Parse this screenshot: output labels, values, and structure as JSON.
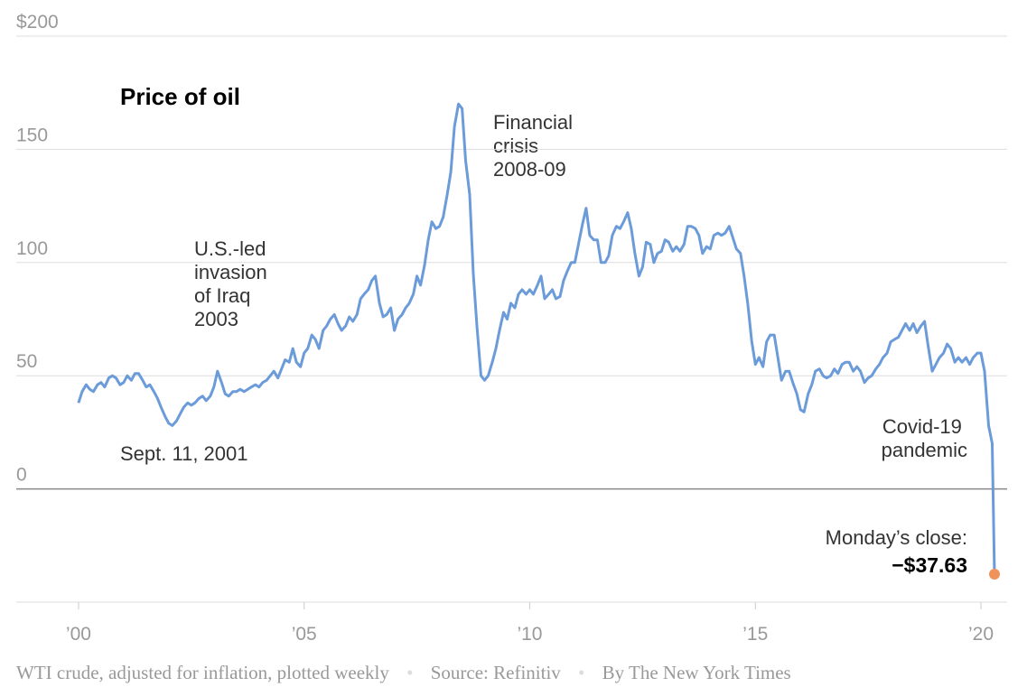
{
  "chart_data": {
    "type": "line",
    "title": "Price of oil",
    "color": "#6b9bd9",
    "x": [
      2000,
      2000.08,
      2000.17,
      2000.25,
      2000.33,
      2000.42,
      2000.5,
      2000.58,
      2000.67,
      2000.75,
      2000.83,
      2000.92,
      2001,
      2001.08,
      2001.17,
      2001.25,
      2001.33,
      2001.42,
      2001.5,
      2001.58,
      2001.67,
      2001.75,
      2001.83,
      2001.92,
      2002,
      2002.08,
      2002.17,
      2002.25,
      2002.33,
      2002.42,
      2002.5,
      2002.58,
      2002.67,
      2002.75,
      2002.83,
      2002.92,
      2003,
      2003.08,
      2003.17,
      2003.25,
      2003.33,
      2003.42,
      2003.5,
      2003.58,
      2003.67,
      2003.75,
      2003.83,
      2003.92,
      2004,
      2004.08,
      2004.17,
      2004.25,
      2004.33,
      2004.42,
      2004.5,
      2004.58,
      2004.67,
      2004.75,
      2004.83,
      2004.92,
      2005,
      2005.08,
      2005.17,
      2005.25,
      2005.33,
      2005.42,
      2005.5,
      2005.58,
      2005.67,
      2005.75,
      2005.83,
      2005.92,
      2006,
      2006.08,
      2006.17,
      2006.25,
      2006.33,
      2006.42,
      2006.5,
      2006.58,
      2006.67,
      2006.75,
      2006.83,
      2006.92,
      2007,
      2007.08,
      2007.17,
      2007.25,
      2007.33,
      2007.42,
      2007.5,
      2007.58,
      2007.67,
      2007.75,
      2007.83,
      2007.92,
      2008,
      2008.08,
      2008.17,
      2008.25,
      2008.33,
      2008.42,
      2008.5,
      2008.58,
      2008.67,
      2008.75,
      2008.83,
      2008.92,
      2009,
      2009.08,
      2009.17,
      2009.25,
      2009.33,
      2009.42,
      2009.5,
      2009.58,
      2009.67,
      2009.75,
      2009.83,
      2009.92,
      2010,
      2010.08,
      2010.17,
      2010.25,
      2010.33,
      2010.42,
      2010.5,
      2010.58,
      2010.67,
      2010.75,
      2010.83,
      2010.92,
      2011,
      2011.08,
      2011.17,
      2011.25,
      2011.33,
      2011.42,
      2011.5,
      2011.58,
      2011.67,
      2011.75,
      2011.83,
      2011.92,
      2012,
      2012.08,
      2012.17,
      2012.25,
      2012.33,
      2012.42,
      2012.5,
      2012.58,
      2012.67,
      2012.75,
      2012.83,
      2012.92,
      2013,
      2013.08,
      2013.17,
      2013.25,
      2013.33,
      2013.42,
      2013.5,
      2013.58,
      2013.67,
      2013.75,
      2013.83,
      2013.92,
      2014,
      2014.08,
      2014.17,
      2014.25,
      2014.33,
      2014.42,
      2014.5,
      2014.58,
      2014.67,
      2014.75,
      2014.83,
      2014.92,
      2015,
      2015.08,
      2015.17,
      2015.25,
      2015.33,
      2015.42,
      2015.5,
      2015.58,
      2015.67,
      2015.75,
      2015.83,
      2015.92,
      2016,
      2016.08,
      2016.17,
      2016.25,
      2016.33,
      2016.42,
      2016.5,
      2016.58,
      2016.67,
      2016.75,
      2016.83,
      2016.92,
      2017,
      2017.08,
      2017.17,
      2017.25,
      2017.33,
      2017.42,
      2017.5,
      2017.58,
      2017.67,
      2017.75,
      2017.83,
      2017.92,
      2018,
      2018.08,
      2018.17,
      2018.25,
      2018.33,
      2018.42,
      2018.5,
      2018.58,
      2018.67,
      2018.75,
      2018.83,
      2018.92,
      2019,
      2019.08,
      2019.17,
      2019.25,
      2019.33,
      2019.42,
      2019.5,
      2019.58,
      2019.67,
      2019.75,
      2019.83,
      2019.92,
      2020,
      2020.08,
      2020.17,
      2020.25,
      2020.3
    ],
    "values": [
      38,
      43,
      46,
      44,
      43,
      46,
      47,
      45,
      49,
      50,
      49,
      46,
      47,
      50,
      48,
      51,
      51,
      48,
      45,
      46,
      43,
      40,
      36,
      32,
      29,
      28,
      30,
      33,
      36,
      38,
      37,
      38,
      40,
      41,
      39,
      41,
      45,
      52,
      47,
      42,
      41,
      43,
      43,
      44,
      43,
      44,
      45,
      46,
      45,
      47,
      48,
      50,
      52,
      49,
      53,
      57,
      56,
      62,
      56,
      54,
      60,
      62,
      68,
      66,
      62,
      70,
      72,
      75,
      77,
      73,
      70,
      72,
      76,
      74,
      77,
      84,
      86,
      88,
      92,
      94,
      82,
      76,
      77,
      80,
      70,
      75,
      77,
      80,
      82,
      86,
      94,
      90,
      99,
      110,
      118,
      115,
      116,
      120,
      130,
      140,
      160,
      170,
      168,
      145,
      130,
      95,
      72,
      50,
      48,
      50,
      56,
      62,
      70,
      78,
      75,
      82,
      80,
      86,
      88,
      86,
      88,
      86,
      90,
      94,
      84,
      86,
      88,
      84,
      85,
      92,
      96,
      100,
      100,
      108,
      117,
      124,
      112,
      110,
      110,
      100,
      100,
      103,
      112,
      116,
      115,
      118,
      122,
      115,
      104,
      94,
      98,
      109,
      108,
      100,
      104,
      105,
      110,
      109,
      105,
      107,
      105,
      108,
      116,
      116,
      115,
      112,
      104,
      107,
      106,
      112,
      113,
      112,
      113,
      116,
      111,
      106,
      104,
      94,
      82,
      65,
      55,
      58,
      54,
      65,
      68,
      68,
      58,
      48,
      52,
      52,
      47,
      42,
      35,
      34,
      42,
      46,
      52,
      53,
      50,
      49,
      50,
      53,
      51,
      55,
      56,
      56,
      52,
      54,
      52,
      47,
      49,
      50,
      53,
      55,
      58,
      60,
      65,
      66,
      67,
      70,
      73,
      70,
      73,
      69,
      72,
      74,
      63,
      52,
      55,
      58,
      60,
      64,
      62,
      56,
      58,
      56,
      58,
      55,
      58,
      60,
      60,
      52,
      28,
      20,
      -37.63
    ],
    "highlight": {
      "x": 2020.3,
      "value": -37.63,
      "label": "−$37.63",
      "caption": "Monday’s close:",
      "color": "#f0935a"
    },
    "xlim": [
      1998.62,
      2020.58
    ],
    "xticks": [
      {
        "value": 2000,
        "label": "’00"
      },
      {
        "value": 2005,
        "label": "’05"
      },
      {
        "value": 2010,
        "label": "’10"
      },
      {
        "value": 2015,
        "label": "’15"
      },
      {
        "value": 2020,
        "label": "’20"
      }
    ],
    "ylim": [
      -50,
      200
    ],
    "yticks": [
      0,
      50,
      100,
      150,
      {
        "value": 200,
        "label": "$200"
      }
    ],
    "grid": true,
    "annotations": [
      {
        "lines": [
          "U.S.-led",
          "invasion",
          "of Iraq",
          "2003"
        ]
      },
      {
        "lines": [
          "Sept. 11, 2001"
        ]
      },
      {
        "lines": [
          "Financial",
          "crisis",
          "2008-09"
        ]
      },
      {
        "lines": [
          "Covid-19",
          "pandemic"
        ]
      }
    ],
    "footer": [
      "WTI crude, adjusted for inflation, plotted weekly",
      "Source: Refinitiv",
      "By The New York Times"
    ]
  }
}
